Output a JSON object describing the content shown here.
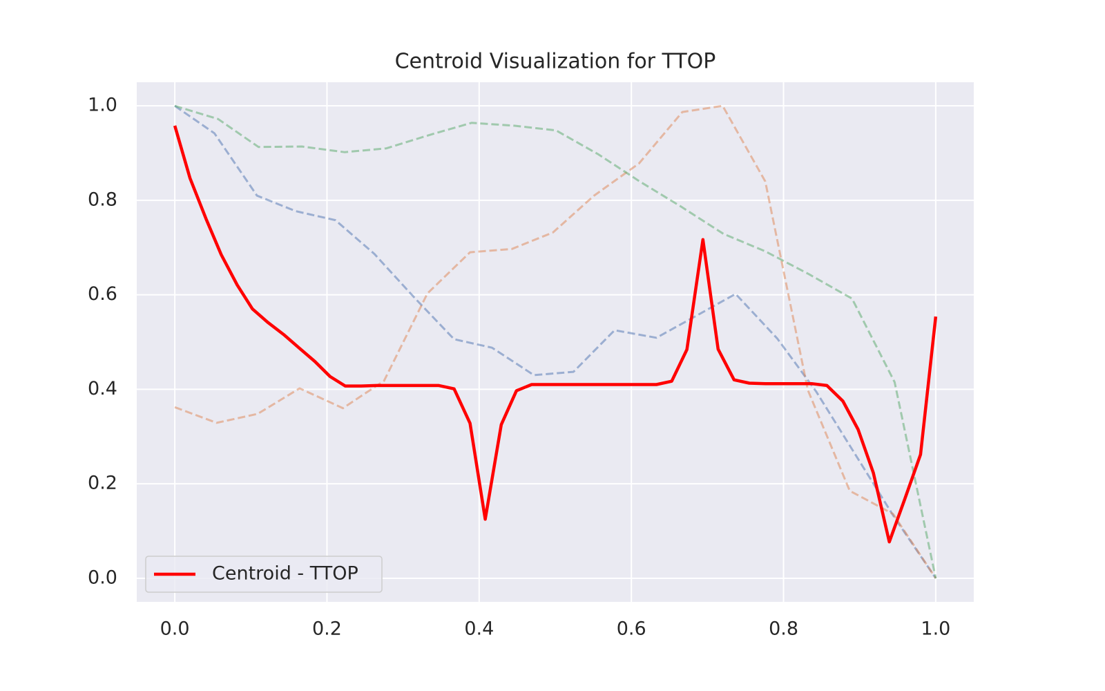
{
  "chart_data": {
    "type": "line",
    "title": "Centroid Visualization for TTOP",
    "xlim": [
      -0.05,
      1.05
    ],
    "ylim": [
      -0.05,
      1.05
    ],
    "xticks": [
      {
        "value": 0,
        "label": "0.0"
      },
      {
        "value": 0.2,
        "label": "0.2"
      },
      {
        "value": 0.4,
        "label": "0.4"
      },
      {
        "value": 0.6,
        "label": "0.6"
      },
      {
        "value": 0.8,
        "label": "0.8"
      },
      {
        "value": 1,
        "label": "1.0"
      }
    ],
    "yticks": [
      {
        "value": 0,
        "label": "0.0"
      },
      {
        "value": 0.2,
        "label": "0.2"
      },
      {
        "value": 0.4,
        "label": "0.4"
      },
      {
        "value": 0.6,
        "label": "0.6"
      },
      {
        "value": 0.8,
        "label": "0.8"
      },
      {
        "value": 1,
        "label": "1.0"
      }
    ],
    "grid": true,
    "legend": "lower left",
    "series": [
      {
        "color": "#4c72b0",
        "dashed": true,
        "x": [
          0,
          0.052,
          0.108,
          0.159,
          0.211,
          0.262,
          0.316,
          0.367,
          0.417,
          0.472,
          0.524,
          0.578,
          0.633,
          0.687,
          0.737,
          0.792,
          0.843,
          0.892,
          0.946,
          1.0
        ],
        "values": [
          1.0,
          0.942,
          0.81,
          0.777,
          0.758,
          0.687,
          0.592,
          0.506,
          0.488,
          0.43,
          0.437,
          0.525,
          0.509,
          0.557,
          0.602,
          0.507,
          0.395,
          0.268,
          0.128,
          0
        ]
      },
      {
        "color": "#dd8452",
        "dashed": true,
        "x": [
          0,
          0.055,
          0.109,
          0.164,
          0.221,
          0.275,
          0.332,
          0.388,
          0.443,
          0.497,
          0.551,
          0.61,
          0.667,
          0.72,
          0.776,
          0.832,
          0.887,
          0.944,
          1.0
        ],
        "values": [
          0.362,
          0.329,
          0.348,
          0.402,
          0.36,
          0.418,
          0.603,
          0.69,
          0.697,
          0.732,
          0.81,
          0.878,
          0.987,
          1.0,
          0.84,
          0.398,
          0.185,
          0.136,
          0
        ]
      },
      {
        "color": "#55a868",
        "dashed": true,
        "x": [
          0,
          0.057,
          0.11,
          0.167,
          0.223,
          0.278,
          0.336,
          0.39,
          0.446,
          0.501,
          0.557,
          0.611,
          0.665,
          0.721,
          0.776,
          0.833,
          0.89,
          0.946,
          1.0
        ],
        "values": [
          1.0,
          0.972,
          0.913,
          0.914,
          0.902,
          0.91,
          0.939,
          0.964,
          0.958,
          0.948,
          0.897,
          0.84,
          0.787,
          0.729,
          0.692,
          0.644,
          0.592,
          0.415,
          0
        ]
      },
      {
        "name": "Centroid - TTOP",
        "color": "#ff0000",
        "dashed": false,
        "x": [
          0,
          0.02,
          0.041,
          0.061,
          0.082,
          0.102,
          0.122,
          0.143,
          0.163,
          0.184,
          0.204,
          0.224,
          0.245,
          0.265,
          0.286,
          0.306,
          0.327,
          0.347,
          0.367,
          0.388,
          0.408,
          0.429,
          0.449,
          0.469,
          0.49,
          0.51,
          0.531,
          0.551,
          0.571,
          0.592,
          0.612,
          0.633,
          0.653,
          0.673,
          0.694,
          0.714,
          0.735,
          0.755,
          0.776,
          0.796,
          0.816,
          0.837,
          0.857,
          0.878,
          0.898,
          0.918,
          0.939,
          0.959,
          0.98,
          1.0
        ],
        "values": [
          0.958,
          0.847,
          0.761,
          0.685,
          0.621,
          0.57,
          0.542,
          0.516,
          0.488,
          0.459,
          0.427,
          0.407,
          0.407,
          0.408,
          0.408,
          0.408,
          0.408,
          0.408,
          0.401,
          0.328,
          0.125,
          0.325,
          0.397,
          0.41,
          0.41,
          0.41,
          0.41,
          0.41,
          0.41,
          0.41,
          0.41,
          0.41,
          0.417,
          0.484,
          0.717,
          0.485,
          0.42,
          0.413,
          0.412,
          0.412,
          0.412,
          0.412,
          0.408,
          0.375,
          0.315,
          0.223,
          0.077,
          0.166,
          0.262,
          0.554
        ]
      }
    ]
  }
}
